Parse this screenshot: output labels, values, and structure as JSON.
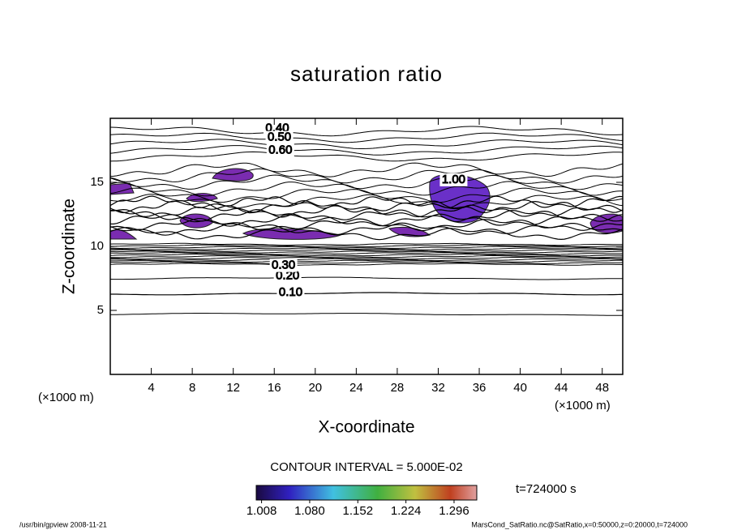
{
  "chart_data": {
    "type": "contour",
    "title": "saturation ratio",
    "xlabel": "X-coordinate",
    "ylabel": "Z-coordinate",
    "x_unit": "(×1000 m)",
    "y_unit": "(×1000 m)",
    "xlim": [
      0,
      50
    ],
    "ylim": [
      0,
      20
    ],
    "xticks": [
      4,
      8,
      12,
      16,
      20,
      24,
      28,
      32,
      36,
      40,
      44,
      48
    ],
    "yticks": [
      5,
      10,
      15
    ],
    "contour_interval": "CONTOUR INTERVAL = 5.000E-02",
    "time": "t=724000 s",
    "contour_labels": [
      {
        "level": 0.1,
        "label": "0.10",
        "x": 17.6,
        "z": 6.4
      },
      {
        "level": 0.2,
        "label": "0.20",
        "x": 17.3,
        "z": 7.7
      },
      {
        "level": 0.3,
        "label": "0.30",
        "x": 16.9,
        "z": 8.5
      },
      {
        "level": 0.4,
        "label": "0.40",
        "x": 16.3,
        "z": 19.2
      },
      {
        "level": 0.5,
        "label": "0.50",
        "x": 16.5,
        "z": 18.5
      },
      {
        "level": 0.6,
        "label": "0.60",
        "x": 16.6,
        "z": 17.5
      },
      {
        "level": 1.0,
        "label": "1.00",
        "x": 33.5,
        "z": 15.2
      }
    ],
    "colorbar": {
      "clim": [
        1.0,
        1.33
      ],
      "ticks": [
        {
          "value": 1.008,
          "label": "1.008"
        },
        {
          "value": 1.08,
          "label": "1.080"
        },
        {
          "value": 1.152,
          "label": "1.152"
        },
        {
          "value": 1.224,
          "label": "1.224"
        },
        {
          "value": 1.296,
          "label": "1.296"
        }
      ]
    },
    "footer_left": "/usr/bin/gpview  2008-11-21",
    "footer_right": "MarsCond_SatRatio.nc@SatRatio,x=0:50000,z=0:20000,t=724000"
  }
}
